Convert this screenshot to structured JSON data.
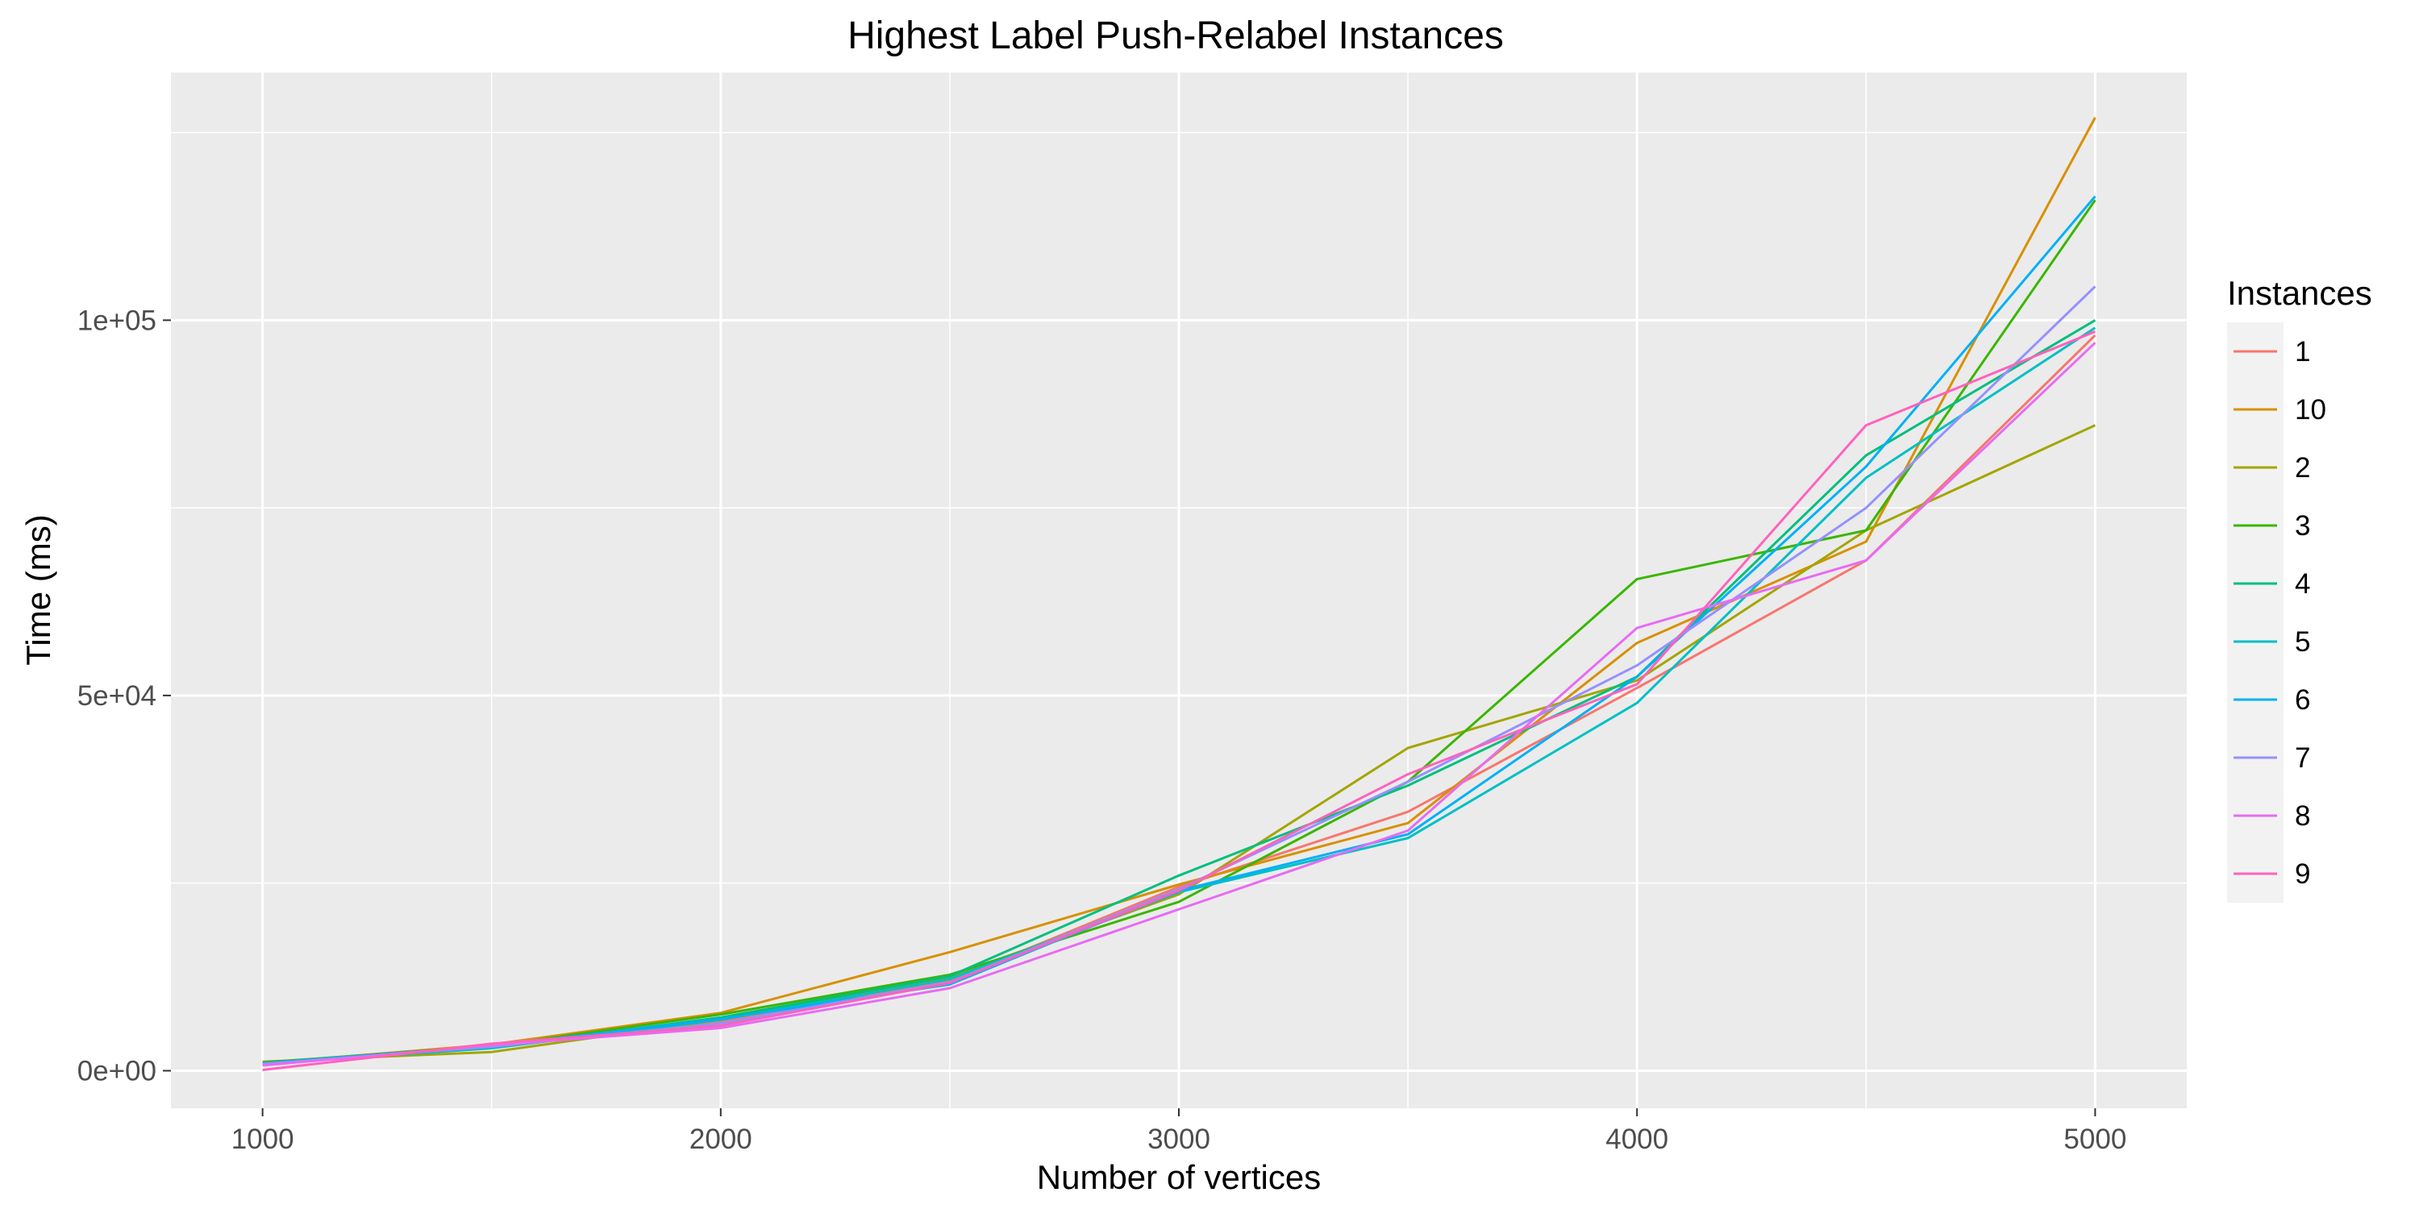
{
  "chart_data": {
    "type": "line",
    "title": "Highest Label Push-Relabel Instances",
    "xlabel": "Number of vertices",
    "ylabel": "Time (ms)",
    "xlim": [
      800,
      5200
    ],
    "ylim": [
      -5000,
      133000
    ],
    "x_ticks": [
      1000,
      2000,
      3000,
      4000,
      5000
    ],
    "x_tick_labels": [
      "1000",
      "2000",
      "3000",
      "4000",
      "5000"
    ],
    "y_ticks": [
      0,
      50000,
      100000
    ],
    "y_tick_labels": [
      "0e+00",
      "5e+04",
      "1e+05"
    ],
    "x": [
      1000,
      1500,
      2000,
      2500,
      3000,
      3500,
      4000,
      4500,
      5000
    ],
    "grid": true,
    "legend_title": "Instances",
    "legend_position": "right",
    "series": [
      {
        "name": "1",
        "color": "#F8766D",
        "values": [
          1000,
          3200,
          6500,
          12000,
          24500,
          34500,
          51000,
          68000,
          98000
        ]
      },
      {
        "name": "10",
        "color": "#D89000",
        "values": [
          1000,
          3500,
          7700,
          15800,
          24800,
          33000,
          57000,
          70500,
          127000
        ]
      },
      {
        "name": "2",
        "color": "#A3A500",
        "values": [
          1200,
          2500,
          6800,
          12500,
          23500,
          43000,
          52000,
          72000,
          86000
        ]
      },
      {
        "name": "3",
        "color": "#39B600",
        "values": [
          1100,
          3300,
          7500,
          12800,
          22500,
          38500,
          65500,
          72000,
          116000
        ]
      },
      {
        "name": "4",
        "color": "#00BF7D",
        "values": [
          1000,
          3100,
          7100,
          12600,
          26000,
          38000,
          52500,
          82000,
          100000
        ]
      },
      {
        "name": "5",
        "color": "#00BFC4",
        "values": [
          900,
          3000,
          6800,
          12200,
          23800,
          31000,
          49000,
          79000,
          99000
        ]
      },
      {
        "name": "6",
        "color": "#00B0F6",
        "values": [
          1000,
          3300,
          6900,
          11500,
          24000,
          31500,
          52500,
          80500,
          116500
        ]
      },
      {
        "name": "7",
        "color": "#9590FF",
        "values": [
          900,
          3200,
          6300,
          11800,
          24200,
          38500,
          54000,
          75000,
          104500
        ]
      },
      {
        "name": "8",
        "color": "#E76BF3",
        "values": [
          700,
          3400,
          5700,
          11000,
          21500,
          32000,
          59000,
          68000,
          97000
        ]
      },
      {
        "name": "9",
        "color": "#FF62BC",
        "values": [
          100,
          3600,
          6000,
          11700,
          24000,
          39500,
          51500,
          86000,
          98500
        ]
      }
    ]
  }
}
